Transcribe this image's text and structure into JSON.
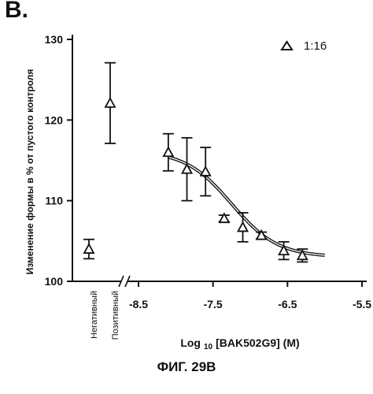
{
  "panel_label": "B.",
  "caption": "ФИГ. 29B",
  "chart_data": {
    "type": "scatter",
    "ylabel": "Изменение формы в % от пустого контроля",
    "xlabel": "Log 10 [BAK502G9] (M)",
    "xlabel_parts": {
      "prefix": "Log",
      "subscript": "10",
      "rest": "[BAK502G9] (M)"
    },
    "ylim": [
      100,
      130
    ],
    "xlim": [
      -8.5,
      -5.5
    ],
    "y_ticks": [
      100,
      110,
      120,
      130
    ],
    "x_ticks": [
      "-8.5",
      "-7.5",
      "-6.5",
      "-5.5"
    ],
    "x_ticks_values": [
      -8.5,
      -7.5,
      -6.5,
      -5.5
    ],
    "axis_break": true,
    "legend": {
      "label": "1:16",
      "marker": "triangle",
      "position": "top-right"
    },
    "controls": [
      {
        "label": "Негативный",
        "y": 104.0,
        "err": 1.2
      },
      {
        "label": "Позитивный",
        "y": 122.1,
        "err": 5.0
      }
    ],
    "series": [
      {
        "name": "1:16",
        "marker": "triangle",
        "points": [
          {
            "x": -8.1,
            "y": 116.0,
            "err": 2.3
          },
          {
            "x": -7.85,
            "y": 113.9,
            "err": 3.9
          },
          {
            "x": -7.6,
            "y": 113.6,
            "err": 3.0
          },
          {
            "x": -7.35,
            "y": 107.8,
            "err": 0.4
          },
          {
            "x": -7.1,
            "y": 106.7,
            "err": 1.8
          },
          {
            "x": -6.85,
            "y": 105.7,
            "err": 0.4
          },
          {
            "x": -6.55,
            "y": 103.8,
            "err": 1.1
          },
          {
            "x": -6.3,
            "y": 103.2,
            "err": 0.8
          }
        ]
      }
    ],
    "fit_curve": {
      "top": 116.2,
      "bottom": 103.0,
      "log_ec50": -7.25,
      "hill": 1.4
    },
    "colors": {
      "ink": "#111111",
      "fit_inner": "#ffffff"
    }
  }
}
